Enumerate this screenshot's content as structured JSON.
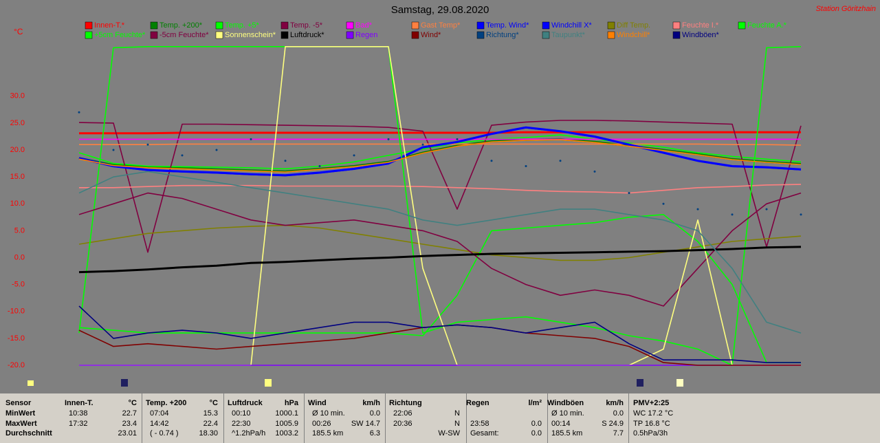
{
  "chart_data": {
    "type": "line",
    "title": "Samstag, 29.08.2020",
    "station": "Station Göritzhain",
    "y_label": "°C",
    "ylim": [
      -20,
      40.2
    ],
    "yticks": [
      {
        "value": -20,
        "label": "-20.0"
      },
      {
        "value": -15,
        "label": "-15.0"
      },
      {
        "value": -10,
        "label": "-10.0"
      },
      {
        "value": -5,
        "label": "-5.0"
      },
      {
        "value": 0,
        "label": "0.0"
      },
      {
        "value": 5,
        "label": "5.0"
      },
      {
        "value": 10,
        "label": "10.0"
      },
      {
        "value": 15,
        "label": "15.0"
      },
      {
        "value": 20,
        "label": "20.0"
      },
      {
        "value": 25,
        "label": "25.0"
      },
      {
        "value": 30,
        "label": "30.0"
      }
    ],
    "grid": false,
    "series": [
      {
        "name": "Innen-T.*",
        "color": "#ff0000",
        "values": [
          23.1,
          23.1,
          23.1,
          23.2,
          23.2,
          23.2,
          23.2,
          23.2,
          23.2,
          23.2,
          23.2,
          23.2,
          23.2,
          23.3,
          23.3,
          23.3,
          23.3,
          23.3,
          23.3,
          23.3,
          23.3,
          23.3
        ]
      },
      {
        "name": "Temp. +200*",
        "color": "#008000",
        "values": [
          18.5,
          17.2,
          16.8,
          16.6,
          16.4,
          16.2,
          16.0,
          16.5,
          17.0,
          17.8,
          19.5,
          20.8,
          21.6,
          21.9,
          22.0,
          21.5,
          20.8,
          20.0,
          19.2,
          18.3,
          17.8,
          17.4
        ]
      },
      {
        "name": "Temp. +5*",
        "color": "#00ff00",
        "values": [
          19.5,
          17.5,
          17.0,
          16.9,
          16.8,
          16.7,
          16.5,
          17.0,
          17.8,
          19.0,
          20.2,
          21.3,
          22.0,
          22.3,
          22.8,
          22.0,
          21.3,
          20.5,
          19.5,
          18.8,
          18.3,
          17.8
        ]
      },
      {
        "name": "Temp. -5*",
        "color": "#800040",
        "values": [
          25.1,
          25.0,
          1.0,
          24.8,
          24.8,
          24.7,
          24.6,
          24.5,
          24.4,
          24.2,
          23.5,
          9.0,
          24.6,
          25.2,
          25.5,
          25.5,
          25.4,
          25.2,
          25.0,
          24.8,
          2.0,
          24.5
        ]
      },
      {
        "name": "Bad*",
        "color": "#ff00ff",
        "values": [
          22.0,
          22.0,
          22.0,
          22.0,
          22.0,
          22.0,
          22.0,
          22.0,
          22.0,
          22.0,
          22.0,
          22.0,
          22.0,
          22.0,
          22.0,
          22.0,
          22.0,
          22.0,
          22.0,
          22.0,
          22.0,
          22.0
        ]
      },
      {
        "name": "Gast Temp*",
        "color": "#ff8040",
        "values": [
          21.0,
          21.0,
          21.0,
          21.1,
          21.1,
          21.1,
          21.1,
          21.1,
          21.1,
          21.1,
          21.1,
          21.1,
          21.1,
          21.1,
          21.1,
          21.1,
          21.1,
          21.1,
          21.1,
          21.0,
          21.0,
          20.9
        ]
      },
      {
        "name": "Temp. Wind*",
        "color": "#0000ff",
        "values": [
          18.5,
          17.0,
          16.3,
          16.0,
          15.8,
          15.5,
          15.3,
          15.8,
          16.5,
          17.5,
          20.5,
          21.5,
          23.0,
          24.2,
          23.5,
          22.5,
          21.0,
          19.5,
          18.0,
          17.0,
          16.8,
          16.4
        ]
      },
      {
        "name": "Windchill X*",
        "color": "#0000ff",
        "values": [
          18.4,
          16.9,
          16.2,
          15.9,
          15.7,
          15.4,
          15.2,
          15.7,
          16.4,
          17.4,
          20.4,
          21.4,
          22.9,
          24.1,
          23.4,
          22.4,
          20.9,
          19.4,
          17.9,
          16.9,
          16.7,
          16.3
        ]
      },
      {
        "name": "Diff Temp.",
        "color": "#808000",
        "values": [
          2.5,
          3.5,
          4.5,
          5.0,
          5.5,
          5.8,
          6.0,
          5.5,
          4.5,
          3.5,
          2.5,
          1.5,
          0.5,
          0.0,
          -0.5,
          -0.5,
          0.0,
          1.0,
          2.0,
          3.0,
          3.5,
          4.0
        ]
      },
      {
        "name": "Feuchte I.*",
        "color": "#ff8080",
        "values": [
          13.0,
          13.0,
          13.2,
          13.4,
          13.4,
          13.4,
          13.3,
          13.3,
          13.3,
          13.3,
          13.2,
          13.0,
          12.8,
          12.5,
          12.3,
          12.2,
          12.0,
          12.5,
          13.0,
          13.2,
          13.5,
          13.6
        ]
      },
      {
        "name": "Feuchte A.*",
        "color": "#00ff00",
        "values": [
          -14.0,
          39.0,
          39.2,
          39.2,
          39.2,
          39.2,
          39.2,
          39.2,
          39.2,
          39.2,
          -14.0,
          -12.0,
          -11.5,
          -11.0,
          -12.0,
          -13.0,
          -14.5,
          -15.5,
          -17.0,
          -20.0,
          39.0,
          39.2
        ]
      },
      {
        "name": "+5cm Feuchte*",
        "color": "#00ff00",
        "values": [
          -13.0,
          -13.5,
          -14.0,
          -14.0,
          -14.0,
          -14.0,
          -14.0,
          -14.0,
          -14.0,
          -14.0,
          -14.5,
          -7.0,
          5.0,
          5.5,
          6.0,
          6.5,
          7.5,
          8.0,
          3.0,
          -5.0,
          -19.5,
          -19.5
        ]
      },
      {
        "name": "-5cm Feuchte*",
        "color": "#800040",
        "values": [
          8.0,
          10.0,
          12.0,
          11.0,
          9.0,
          7.0,
          6.0,
          6.5,
          7.0,
          6.0,
          5.0,
          3.0,
          -2.0,
          -5.0,
          -7.0,
          -6.0,
          -7.0,
          -9.0,
          -2.0,
          5.0,
          10.0,
          12.0
        ]
      },
      {
        "name": "Sonnenschein*",
        "color": "#ffff80",
        "values": [
          -20,
          -20,
          -20,
          -20,
          -20,
          -20,
          39.2,
          39.2,
          39.2,
          39.2,
          -2.0,
          -20,
          -20,
          -20,
          -20,
          -20,
          -20,
          -17.0,
          7.0,
          -20,
          -20,
          -20
        ]
      },
      {
        "name": "Luftdruck*",
        "color": "#000000",
        "values": [
          -2.7,
          -2.5,
          -2.2,
          -1.8,
          -1.5,
          -1.0,
          -0.8,
          -0.5,
          -0.2,
          0.0,
          0.3,
          0.5,
          0.7,
          0.8,
          0.9,
          1.0,
          1.1,
          1.2,
          1.4,
          1.6,
          1.9,
          2.0
        ]
      },
      {
        "name": "Regen",
        "color": "#8000ff",
        "values": [
          -20,
          -20,
          -20,
          -20,
          -20,
          -20,
          -20,
          -20,
          -20,
          -20,
          -20,
          -20,
          -20,
          -20,
          -20,
          -20,
          -20,
          -20,
          -20,
          -20,
          -20,
          -20
        ]
      },
      {
        "name": "Wind*",
        "color": "#800000",
        "values": [
          -13.5,
          -16.5,
          -16.0,
          -16.5,
          -17.0,
          -16.5,
          -16.0,
          -15.5,
          -15.0,
          -14.0,
          -13.0,
          -12.5,
          -13.0,
          -14.0,
          -14.5,
          -15.0,
          -16.5,
          -19.5,
          -20.0,
          -20.0,
          -20.0,
          -20.0
        ]
      },
      {
        "name": "Richtung*",
        "color": "#004080",
        "marker": "dots",
        "values": [
          27,
          20,
          21,
          19,
          20,
          22,
          18,
          17,
          19,
          22,
          21,
          22,
          18,
          17,
          18,
          16,
          12,
          10,
          9,
          8,
          9,
          8
        ]
      },
      {
        "name": "Taupunkt*",
        "color": "#408080",
        "values": [
          12,
          15,
          16,
          15,
          14,
          13,
          12,
          11,
          10,
          9,
          7,
          6,
          7,
          8,
          9,
          9,
          8,
          7,
          5,
          -2,
          -12,
          -14
        ]
      },
      {
        "name": "Windchill*",
        "color": "#ff8000",
        "values": [
          18.3,
          17.1,
          16.7,
          16.5,
          16.3,
          16.1,
          15.9,
          16.4,
          16.9,
          17.7,
          19.4,
          20.7,
          21.5,
          21.8,
          21.9,
          21.4,
          20.7,
          19.9,
          19.1,
          18.2,
          17.7,
          17.3
        ]
      },
      {
        "name": "Windböen*",
        "color": "#000080",
        "values": [
          -9,
          -15,
          -14,
          -13.5,
          -14,
          -15,
          -14,
          -13,
          -12,
          -12,
          -13,
          -12.5,
          -13,
          -14,
          -13,
          -12,
          -16,
          -19,
          -19,
          -19,
          -19.5,
          -19.5
        ]
      }
    ]
  },
  "table": {
    "header": [
      "Sensor",
      "Innen-T.",
      "°C",
      "Temp. +200",
      "°C",
      "Luftdruck",
      "hPa",
      "Wind",
      "km/h",
      "Richtung",
      null,
      "Regen",
      "l/m²",
      "Windböen",
      "km/h",
      "PMV+2:25"
    ],
    "rows": [
      [
        "MinWert",
        "10:38",
        "22.7",
        "07:04",
        "15.3",
        "00:10",
        "1000.1",
        "Ø 10 min.",
        "0.0",
        "22:06",
        "N",
        null,
        null,
        "Ø 10 min.",
        "0.0",
        "WC 17.2 °C"
      ],
      [
        "MaxWert",
        "17:32",
        "23.4",
        "14:42",
        "22.4",
        "22:30",
        "1005.9",
        "00:26",
        "SW 14.7",
        "20:36",
        "N",
        "23:58",
        "0.0",
        "00:14",
        "S 24.9",
        "TP 16.8 °C"
      ],
      [
        "Durchschnitt",
        null,
        "23.01",
        "( - 0.74 )",
        "18.30",
        "^1.2hPa/h",
        "1003.2",
        "185.5 km",
        "6.3",
        null,
        "W-SW",
        "Gesamt:",
        "0.0",
        "185.5 km",
        "7.7",
        "0.5hPa/3h"
      ]
    ]
  }
}
